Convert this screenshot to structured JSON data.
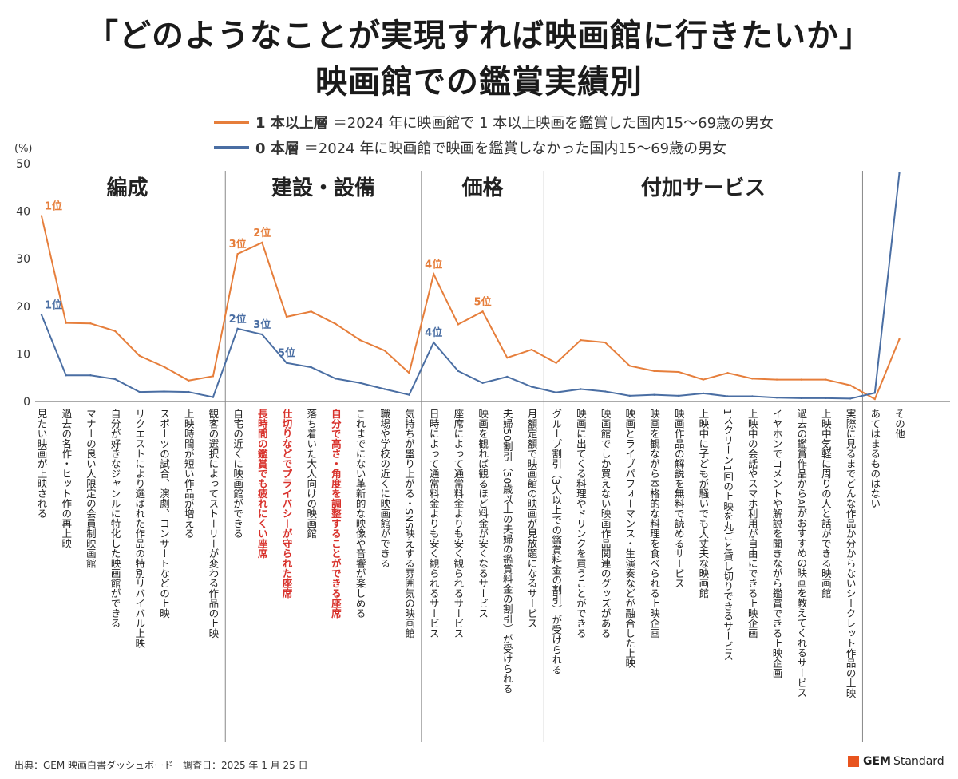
{
  "header": {
    "title_line1": "「どのようなことが実現すれば映画館に行きたいか」",
    "title_line2": "映画館での鑑賞実績別"
  },
  "legend": [
    {
      "name": "1 本以上層",
      "desc": "＝2024 年に映画館で 1 本以上映画を鑑賞した国内15～69歳の男女",
      "color": "#E67E3B"
    },
    {
      "name": "0 本層",
      "desc": "＝2024 年に映画館で映画を鑑賞しなかった国内15～69歳の男女",
      "color": "#4A6EA3"
    }
  ],
  "chart_data": {
    "type": "line",
    "ylabel": "(%)",
    "ylim": [
      0,
      50
    ],
    "yticks": [
      0,
      10,
      20,
      30,
      40,
      50
    ],
    "groups": [
      {
        "label": "編成",
        "start": 0,
        "end": 7
      },
      {
        "label": "建設・設備",
        "start": 8,
        "end": 15
      },
      {
        "label": "価格",
        "start": 16,
        "end": 20
      },
      {
        "label": "付加サービス",
        "start": 21,
        "end": 33
      }
    ],
    "categories": [
      "見たい映画が上映される",
      "過去の名作・ヒット作の再上映",
      "マナーの良い人限定の会員制映画館",
      "自分が好きなジャンルに特化した映画館ができる",
      "リクエストにより選ばれた作品の特別リバイバル上映",
      "スポーツの試合、演劇、コンサートなどの上映",
      "上映時間が短い作品が増える",
      "観客の選択によってストーリーが変わる作品の上映",
      "自宅の近くに映画館ができる",
      "長時間の鑑賞でも疲れにくい座席",
      "仕切りなどでプライバシーが守られた座席",
      "落ち着いた大人向けの映画館",
      "自分で高さ・角度を調整することができる座席",
      "これまでにない革新的な映像や音響が楽しめる",
      "職場や学校の近くに映画館ができる",
      "気持ちが盛り上がる・SNS映えする雰囲気の映画館",
      "日時によって通常料金よりも安く観られるサービス",
      "座席によって通常料金よりも安く観られるサービス",
      "映画を観れば観るほど料金が安くなるサービス",
      "夫婦50割引（50歳以上の夫婦の鑑賞料金の割引）が受けられる",
      "月額定額で映画館の映画が見放題になるサービス",
      "グループ割引（3人以上での鑑賞料金の割引）が受けられる",
      "映画に出てくる料理やドリンクを買うことができる",
      "映画館でしか買えない映画作品関連のグッズがある",
      "映画とライブパフォーマンス・生演奏などが融合した上映",
      "映画を観ながら本格的な料理を食べられる上映企画",
      "映画作品の解説を無料で読めるサービス",
      "上映中に子どもが騒いでも大丈夫な映画館",
      "1スクリーン1回の上映を丸ごと貸し切りできるサービス",
      "上映中の会話やスマホ利用が自由にできる上映企画",
      "イヤホンでコメントや解説を聞きながら鑑賞できる上映企画",
      "過去の鑑賞作品からAIがおすすめの映画を教えてくれるサービス",
      "上映中気軽に周りの人と話ができる映画館",
      "実際に見るまでどんな作品か分からないシークレット作品の上映",
      "あてはまるものはない",
      "その他"
    ],
    "red_categories": [
      9,
      10,
      12
    ],
    "series": [
      {
        "name": "1 本以上層",
        "color": "#E67E3B",
        "values": [
          39.0,
          16.5,
          16.4,
          14.8,
          9.6,
          7.3,
          4.4,
          5.3,
          31.0,
          33.4,
          17.8,
          18.9,
          16.3,
          12.9,
          10.7,
          6.0,
          26.8,
          16.2,
          18.9,
          9.2,
          10.9,
          8.1,
          12.9,
          12.4,
          7.5,
          6.4,
          6.2,
          4.6,
          6.0,
          4.8,
          4.6,
          4.6,
          4.6,
          3.4,
          0.5,
          13.1
        ],
        "ranks": [
          {
            "i": 0,
            "label": "1位"
          },
          {
            "i": 9,
            "label": "2位"
          },
          {
            "i": 8,
            "label": "3位"
          },
          {
            "i": 16,
            "label": "4位"
          },
          {
            "i": 18,
            "label": "5位"
          }
        ]
      },
      {
        "name": "0 本層",
        "color": "#4A6EA3",
        "values": [
          18.2,
          5.5,
          5.5,
          4.7,
          2.0,
          2.1,
          2.0,
          0.9,
          15.3,
          14.1,
          8.1,
          7.2,
          4.8,
          3.9,
          2.6,
          1.4,
          12.4,
          6.4,
          3.9,
          5.2,
          3.1,
          1.9,
          2.6,
          2.1,
          1.2,
          1.4,
          1.2,
          1.7,
          1.1,
          1.1,
          0.8,
          0.7,
          0.7,
          0.6,
          1.8,
          48.0
        ],
        "ranks": [
          {
            "i": 0,
            "label": "1位"
          },
          {
            "i": 8,
            "label": "2位"
          },
          {
            "i": 9,
            "label": "3位"
          },
          {
            "i": 16,
            "label": "4位"
          },
          {
            "i": 10,
            "label": "5位"
          }
        ]
      }
    ]
  },
  "footer": {
    "source": "出典：GEM 映画白書ダッシュボード　調査日：2025 年 1 月 25 日",
    "logo_gem": "GEM",
    "logo_rest": "Standard"
  }
}
